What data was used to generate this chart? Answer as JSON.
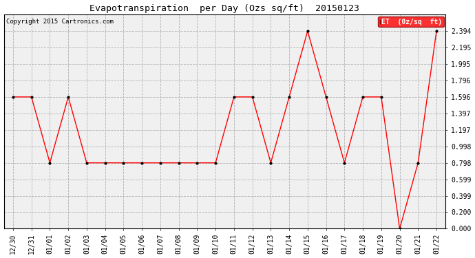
{
  "title": "Evapotranspiration  per Day (Ozs sq/ft)  20150123",
  "copyright": "Copyright 2015 Cartronics.com",
  "legend_label": "ET  (0z/sq  ft)",
  "dates": [
    "12/30",
    "12/31",
    "01/01",
    "01/02",
    "01/03",
    "01/04",
    "01/05",
    "01/06",
    "01/07",
    "01/08",
    "01/09",
    "01/10",
    "01/11",
    "01/12",
    "01/13",
    "01/14",
    "01/15",
    "01/16",
    "01/17",
    "01/18",
    "01/19",
    "01/20",
    "01/21",
    "01/22"
  ],
  "values": [
    1.596,
    1.596,
    0.798,
    1.596,
    0.798,
    0.798,
    0.798,
    0.798,
    0.798,
    0.798,
    0.798,
    0.798,
    1.596,
    1.596,
    0.798,
    1.596,
    2.394,
    1.596,
    0.798,
    1.596,
    1.596,
    0.0,
    0.798,
    2.394
  ],
  "ylim": [
    0.0,
    2.594
  ],
  "yticks": [
    0.0,
    0.2,
    0.399,
    0.599,
    0.798,
    0.998,
    1.197,
    1.397,
    1.596,
    1.796,
    1.995,
    2.195,
    2.394
  ],
  "line_color": "red",
  "marker_color": "black",
  "bg_color": "#f0f0f0",
  "grid_color": "#b0b0b0",
  "title_fontsize": 9.5,
  "tick_fontsize": 7,
  "copyright_fontsize": 6.5
}
